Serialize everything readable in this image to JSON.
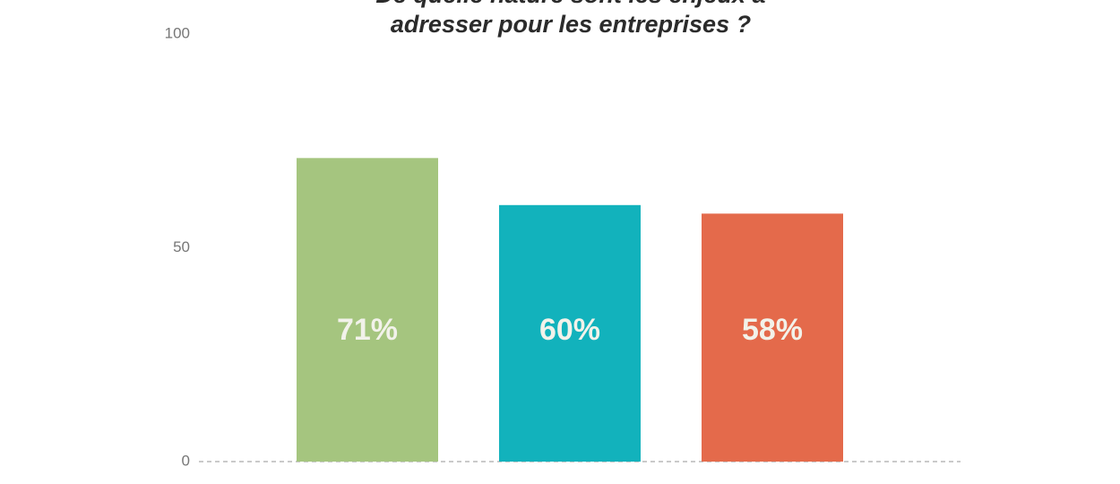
{
  "chart_data": {
    "type": "bar",
    "title": "De quelle nature sont les enjeux à\nadresser pour les entreprises ?",
    "categories": [
      null,
      null,
      null
    ],
    "values": [
      71,
      60,
      58
    ],
    "value_labels": [
      "71%",
      "60%",
      "58%"
    ],
    "colors": [
      "#a5c57f",
      "#12b2bc",
      "#e46a4b"
    ],
    "ylim": [
      0,
      100
    ],
    "yticks": [
      0,
      50,
      100
    ],
    "grid": false
  }
}
